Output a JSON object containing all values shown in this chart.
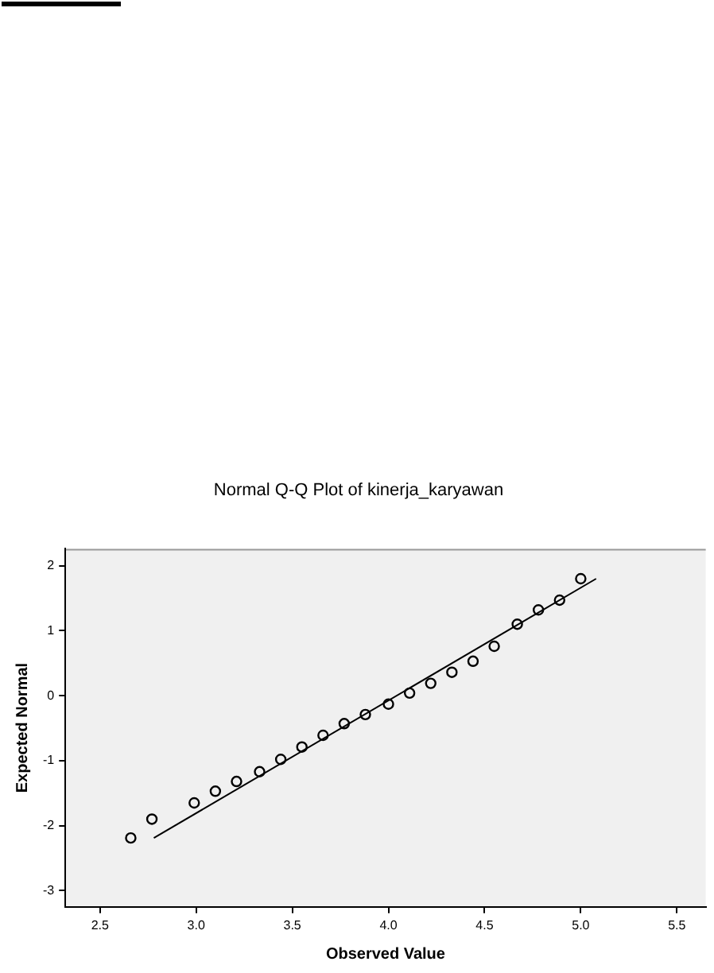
{
  "chart_data": {
    "type": "scatter",
    "title": "Normal Q-Q Plot of kinerja_karyawan",
    "xlabel": "Observed Value",
    "ylabel": "Expected Normal",
    "xlim": [
      2.32,
      5.65
    ],
    "ylim": [
      -3.25,
      2.26
    ],
    "xticks": [
      2.5,
      {
        "value": 3,
        "label": "3.0"
      },
      3.5,
      {
        "value": 4,
        "label": "4.0"
      },
      4.5,
      {
        "value": 5,
        "label": "5.0"
      },
      5.5
    ],
    "yticks": [
      -3,
      -2,
      -1,
      0,
      1,
      2
    ],
    "series": [
      {
        "marker": "circle",
        "color": "#000000",
        "x": [
          2.66,
          2.77,
          2.99,
          3.1,
          3.21,
          3.33,
          3.44,
          3.55,
          3.66,
          3.77,
          3.88,
          4.0,
          4.11,
          4.22,
          4.33,
          4.44,
          4.55,
          4.67,
          4.78,
          4.89,
          5.0
        ],
        "values": [
          -2.19,
          -1.9,
          -1.65,
          -1.47,
          -1.32,
          -1.17,
          -0.98,
          -0.79,
          -0.61,
          -0.43,
          -0.29,
          -0.13,
          0.04,
          0.19,
          0.36,
          0.53,
          0.76,
          1.1,
          1.32,
          1.47,
          1.8
        ]
      },
      {
        "type": "line",
        "color": "#000000",
        "x": [
          2.78,
          5.08
        ],
        "values": [
          -2.19,
          1.8
        ]
      }
    ]
  }
}
